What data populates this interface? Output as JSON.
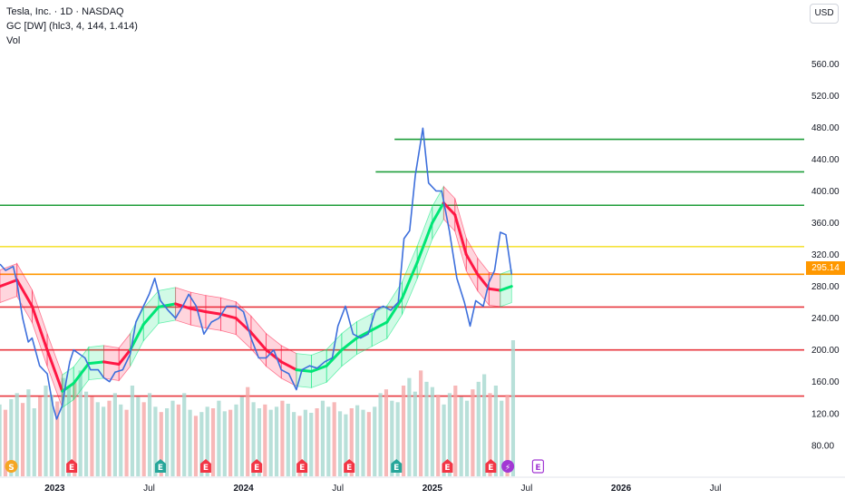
{
  "header": {
    "title": "Tesla, Inc. · 1D · NASDAQ",
    "indicator": "GC [DW] (hlc3, 4, 144, 1.414)",
    "volume": "Vol"
  },
  "currency": "USD",
  "last_price": "295.14",
  "colors": {
    "price_line": "#3d6fdc",
    "band_green": "#00e676",
    "band_red": "#ff1744",
    "level_green": "#1e9e3a",
    "level_yellow": "#f5e23a",
    "level_orange": "#ff9800",
    "level_red": "#e8363e",
    "vol_up": "#a6d8cf",
    "vol_down": "#f5a6a6",
    "event_e": "#26a69a",
    "event_red": "#f23645",
    "event_split": "#f5a623",
    "event_purple": "#a238d4"
  },
  "chart_data": {
    "type": "line",
    "y_axis": {
      "ticks": [
        80,
        120,
        160,
        200,
        240,
        280,
        320,
        360,
        400,
        440,
        480,
        520,
        560
      ],
      "range": [
        41,
        606
      ]
    },
    "x_axis": {
      "ticks": [
        "2023",
        "Jul",
        "2024",
        "Jul",
        "2025",
        "Jul",
        "2026",
        "Jul"
      ],
      "start": 2022.71,
      "end": 2026.97
    },
    "levels": [
      {
        "price": 465,
        "color": "green",
        "from": 2024.8
      },
      {
        "price": 424,
        "color": "green",
        "from": 2024.7
      },
      {
        "price": 382,
        "color": "green",
        "from": 2022.71
      },
      {
        "price": 330,
        "color": "yellow",
        "from": 2022.71
      },
      {
        "price": 295.14,
        "color": "orange",
        "from": 2022.71
      },
      {
        "price": 254,
        "color": "red",
        "from": 2022.71
      },
      {
        "price": 200,
        "color": "red",
        "from": 2022.71
      },
      {
        "price": 142,
        "color": "red",
        "from": 2022.71
      }
    ],
    "price": [
      [
        2022.71,
        308
      ],
      [
        2022.74,
        300
      ],
      [
        2022.78,
        305
      ],
      [
        2022.8,
        285
      ],
      [
        2022.83,
        240
      ],
      [
        2022.86,
        210
      ],
      [
        2022.88,
        215
      ],
      [
        2022.92,
        180
      ],
      [
        2022.96,
        170
      ],
      [
        2022.99,
        130
      ],
      [
        2023.01,
        113
      ],
      [
        2023.04,
        130
      ],
      [
        2023.06,
        160
      ],
      [
        2023.08,
        185
      ],
      [
        2023.1,
        200
      ],
      [
        2023.13,
        195
      ],
      [
        2023.16,
        190
      ],
      [
        2023.19,
        175
      ],
      [
        2023.23,
        175
      ],
      [
        2023.26,
        165
      ],
      [
        2023.29,
        160
      ],
      [
        2023.32,
        172
      ],
      [
        2023.36,
        175
      ],
      [
        2023.4,
        195
      ],
      [
        2023.43,
        235
      ],
      [
        2023.46,
        250
      ],
      [
        2023.5,
        270
      ],
      [
        2023.53,
        290
      ],
      [
        2023.56,
        262
      ],
      [
        2023.6,
        250
      ],
      [
        2023.64,
        240
      ],
      [
        2023.68,
        256
      ],
      [
        2023.71,
        270
      ],
      [
        2023.75,
        255
      ],
      [
        2023.79,
        220
      ],
      [
        2023.83,
        235
      ],
      [
        2023.87,
        240
      ],
      [
        2023.91,
        255
      ],
      [
        2023.96,
        255
      ],
      [
        2024.0,
        248
      ],
      [
        2024.04,
        215
      ],
      [
        2024.08,
        190
      ],
      [
        2024.12,
        190
      ],
      [
        2024.16,
        200
      ],
      [
        2024.2,
        175
      ],
      [
        2024.24,
        170
      ],
      [
        2024.28,
        150
      ],
      [
        2024.31,
        175
      ],
      [
        2024.35,
        180
      ],
      [
        2024.39,
        177
      ],
      [
        2024.43,
        185
      ],
      [
        2024.47,
        190
      ],
      [
        2024.5,
        230
      ],
      [
        2024.54,
        255
      ],
      [
        2024.58,
        220
      ],
      [
        2024.62,
        215
      ],
      [
        2024.66,
        220
      ],
      [
        2024.7,
        250
      ],
      [
        2024.74,
        255
      ],
      [
        2024.78,
        250
      ],
      [
        2024.82,
        260
      ],
      [
        2024.85,
        340
      ],
      [
        2024.88,
        350
      ],
      [
        2024.91,
        420
      ],
      [
        2024.95,
        479
      ],
      [
        2024.98,
        410
      ],
      [
        2025.02,
        400
      ],
      [
        2025.05,
        400
      ],
      [
        2025.09,
        350
      ],
      [
        2025.13,
        290
      ],
      [
        2025.17,
        260
      ],
      [
        2025.2,
        230
      ],
      [
        2025.23,
        262
      ],
      [
        2025.27,
        255
      ],
      [
        2025.3,
        285
      ],
      [
        2025.33,
        300
      ],
      [
        2025.36,
        348
      ],
      [
        2025.39,
        345
      ],
      [
        2025.42,
        295
      ]
    ],
    "channel_mid": [
      [
        2022.71,
        280
      ],
      [
        2022.8,
        288
      ],
      [
        2022.88,
        255
      ],
      [
        2022.96,
        200
      ],
      [
        2023.04,
        148
      ],
      [
        2023.1,
        158
      ],
      [
        2023.18,
        183
      ],
      [
        2023.26,
        185
      ],
      [
        2023.34,
        182
      ],
      [
        2023.4,
        200
      ],
      [
        2023.47,
        232
      ],
      [
        2023.55,
        254
      ],
      [
        2023.64,
        258
      ],
      [
        2023.72,
        252
      ],
      [
        2023.8,
        248
      ],
      [
        2023.88,
        245
      ],
      [
        2023.96,
        240
      ],
      [
        2024.04,
        222
      ],
      [
        2024.12,
        200
      ],
      [
        2024.2,
        185
      ],
      [
        2024.28,
        175
      ],
      [
        2024.36,
        173
      ],
      [
        2024.44,
        180
      ],
      [
        2024.52,
        200
      ],
      [
        2024.6,
        215
      ],
      [
        2024.68,
        225
      ],
      [
        2024.76,
        235
      ],
      [
        2024.84,
        265
      ],
      [
        2024.92,
        310
      ],
      [
        2025.0,
        360
      ],
      [
        2025.06,
        385
      ],
      [
        2025.12,
        370
      ],
      [
        2025.18,
        320
      ],
      [
        2025.24,
        295
      ],
      [
        2025.3,
        277
      ],
      [
        2025.36,
        275
      ],
      [
        2025.42,
        280
      ]
    ],
    "channel_colors": [
      "red",
      "red",
      "red",
      "red",
      "green",
      "green",
      "green",
      "red",
      "red",
      "green",
      "green",
      "green",
      "red",
      "red",
      "red",
      "red",
      "red",
      "red",
      "red",
      "red",
      "green",
      "green",
      "green",
      "green",
      "green",
      "green",
      "green",
      "green",
      "green",
      "green",
      "red",
      "red",
      "red",
      "red",
      "red",
      "green"
    ],
    "volume_scale_max": 180,
    "volume": [
      95,
      88,
      102,
      110,
      97,
      115,
      90,
      105,
      120,
      108,
      99,
      130,
      118,
      125,
      140,
      112,
      105,
      98,
      92,
      100,
      110,
      95,
      88,
      120,
      105,
      98,
      110,
      92,
      85,
      90,
      100,
      95,
      110,
      88,
      80,
      85,
      92,
      90,
      100,
      86,
      88,
      95,
      105,
      118,
      98,
      90,
      95,
      88,
      92,
      100,
      96,
      85,
      80,
      88,
      84,
      90,
      100,
      92,
      98,
      86,
      82,
      90,
      94,
      88,
      85,
      92,
      110,
      115,
      100,
      98,
      120,
      130,
      112,
      140,
      125,
      118,
      108,
      95,
      110,
      120,
      105,
      100,
      115,
      125,
      135,
      110,
      120,
      100,
      108,
      180
    ],
    "events": [
      {
        "label": "S",
        "t": 2022.77,
        "kind": "split"
      },
      {
        "label": "E",
        "t": 2023.09,
        "kind": "red"
      },
      {
        "label": "E",
        "t": 2023.56,
        "kind": "e"
      },
      {
        "label": "E",
        "t": 2023.8,
        "kind": "red"
      },
      {
        "label": "E",
        "t": 2024.07,
        "kind": "red"
      },
      {
        "label": "E",
        "t": 2024.31,
        "kind": "red"
      },
      {
        "label": "E",
        "t": 2024.56,
        "kind": "red"
      },
      {
        "label": "E",
        "t": 2024.81,
        "kind": "e"
      },
      {
        "label": "E",
        "t": 2025.08,
        "kind": "red"
      },
      {
        "label": "E",
        "t": 2025.31,
        "kind": "red"
      },
      {
        "label": "⚡",
        "t": 2025.4,
        "kind": "purple"
      },
      {
        "label": "E",
        "t": 2025.56,
        "kind": "purple_outline"
      }
    ]
  }
}
